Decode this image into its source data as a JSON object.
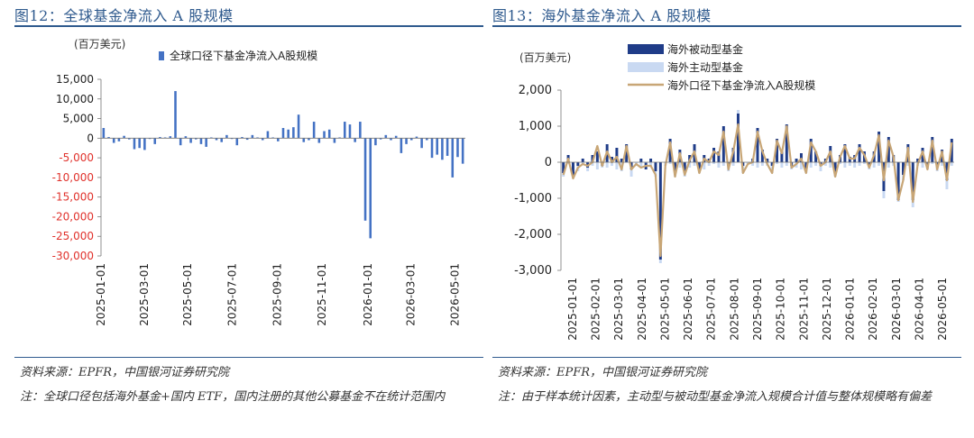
{
  "left": {
    "title": "图12：全球基金净流入 A 股规模",
    "source": "资料来源：EPFR，中国银河证券研究院",
    "note": "注：全球口径包括海外基金+国内 ETF，国内注册的其他公募基金不在统计范围内"
  },
  "right": {
    "title": "图13：海外基金净流入 A 股规模",
    "source": "资料来源：EPFR，中国银河证券研究院",
    "note": "注：由于样本统计因素，主动型与被动型基金净流入规模合计值与整体规模略有偏差"
  },
  "colors": {
    "bar_blue": "#4472c4",
    "passive": "#1f3c88",
    "active": "#c9d9f2",
    "total_line": "#c8a676",
    "neg_tick": "#e0322c",
    "title_blue": "#2f5a8e"
  },
  "chart_data": [
    {
      "type": "bar",
      "unit_label": "(百万美元)",
      "series": [
        {
          "name": "全球口径下基金净流入A股规模",
          "values": [
            2600,
            300,
            -1200,
            -800,
            600,
            -300,
            -2800,
            -2500,
            -3000,
            -200,
            -1500,
            300,
            200,
            500,
            12000,
            -1800,
            500,
            -1200,
            -300,
            -1500,
            -2200,
            200,
            -500,
            -1000,
            800,
            -200,
            -1800,
            300,
            -400,
            800,
            200,
            -500,
            1800,
            200,
            -800,
            2600,
            2200,
            2800,
            6000,
            -1000,
            -500,
            4200,
            -1200,
            1800,
            2200,
            -1200,
            200,
            4200,
            3500,
            -1000,
            4200,
            -21000,
            -25500,
            -1800,
            -300,
            800,
            -500,
            600,
            -3800,
            -1500,
            -500,
            400,
            -2500,
            -500,
            -5000,
            -4200,
            -5500,
            -4500,
            -10000,
            -4800,
            -6500
          ]
        }
      ],
      "x_tick_labels": [
        "2025-01-01",
        "2025-03-01",
        "2025-05-01",
        "2025-07-01",
        "2025-09-01",
        "2025-11-01",
        "2026-01-01",
        "2026-03-01",
        "2026-05-01"
      ],
      "x_tick_weeks": [
        0,
        8.4,
        16.9,
        25.6,
        34.4,
        43.1,
        52,
        60.4,
        69
      ],
      "y_ticks": [
        15000,
        10000,
        5000,
        0,
        -5000,
        -10000,
        -15000,
        -20000,
        -25000,
        -30000
      ],
      "y_tick_labels": [
        "15,000",
        "10,000",
        "5,000",
        "0",
        "-5,000",
        "-10,000",
        "-15,000",
        "-20,000",
        "-25,000",
        "-30,000"
      ],
      "ylim": [
        -30000,
        15000
      ],
      "legend": "top"
    },
    {
      "type": "bar",
      "unit_label": "(百万美元)",
      "series": [
        {
          "name": "海外被动型基金",
          "values": [
            -300,
            200,
            -400,
            -100,
            100,
            -150,
            200,
            300,
            -100,
            500,
            150,
            400,
            100,
            500,
            -200,
            0,
            100,
            -200,
            100,
            -250,
            -2700,
            0,
            650,
            -350,
            350,
            -300,
            200,
            500,
            -200,
            200,
            100,
            400,
            300,
            1000,
            -100,
            400,
            1350,
            -100,
            0,
            100,
            950,
            350,
            100,
            -100,
            650,
            300,
            1050,
            -100,
            100,
            250,
            -200,
            650,
            300,
            -100,
            100,
            450,
            -300,
            200,
            500,
            150,
            200,
            500,
            300,
            -100,
            300,
            850,
            -800,
            700,
            200,
            -1050,
            -350,
            500,
            -1050,
            100,
            400,
            -100,
            700,
            -100,
            350,
            -500,
            650
          ],
          "color_key": "passive"
        },
        {
          "name": "海外主动型基金",
          "values": [
            -100,
            -50,
            -50,
            -150,
            -50,
            -100,
            -100,
            -200,
            -50,
            -150,
            -100,
            -200,
            -250,
            0,
            -200,
            -100,
            -150,
            0,
            -100,
            -150,
            -100,
            -100,
            -50,
            -50,
            -150,
            -100,
            -150,
            -100,
            -100,
            -200,
            -100,
            -50,
            -150,
            -100,
            -150,
            -100,
            100,
            -200,
            -50,
            -100,
            -150,
            -100,
            -100,
            -200,
            -50,
            -150,
            -100,
            -100,
            -150,
            -200,
            -100,
            -150,
            -100,
            -150,
            -100,
            -150,
            -100,
            -50,
            -150,
            -100,
            -150,
            -100,
            -50,
            -100,
            -150,
            -100,
            -200,
            -150,
            -100,
            -50,
            -150,
            -100,
            -200,
            -100,
            -150,
            -100,
            -50,
            -150,
            -100,
            -250,
            -100
          ],
          "color_key": "active"
        },
        {
          "name": "海外口径下基金净流入A股规模",
          "type": "line",
          "values": [
            -350,
            100,
            -450,
            -150,
            -50,
            -100,
            0,
            450,
            -100,
            300,
            0,
            150,
            -200,
            450,
            -200,
            -50,
            -150,
            -100,
            -100,
            -350,
            -2600,
            -100,
            550,
            -400,
            250,
            -350,
            50,
            300,
            -300,
            100,
            0,
            300,
            200,
            850,
            -200,
            300,
            1050,
            -300,
            -50,
            0,
            850,
            300,
            -50,
            -300,
            600,
            250,
            1000,
            -150,
            -50,
            100,
            -300,
            550,
            300,
            -100,
            0,
            300,
            -400,
            150,
            450,
            100,
            100,
            400,
            200,
            -150,
            200,
            750,
            -500,
            600,
            150,
            -1050,
            -500,
            400,
            -1100,
            -50,
            300,
            -200,
            600,
            -200,
            300,
            -500,
            550
          ]
        }
      ],
      "x_tick_labels": [
        "2025-01-01",
        "2025-02-01",
        "2025-03-01",
        "2025-04-01",
        "2025-05-01",
        "2025-06-01",
        "2025-07-01",
        "2025-08-01",
        "2025-09-01",
        "2025-10-01",
        "2025-11-01",
        "2025-12-01",
        "2026-01-01",
        "2026-02-01",
        "2026-03-01",
        "2026-04-01",
        "2026-05-01"
      ],
      "y_ticks": [
        2000,
        1000,
        0,
        -1000,
        -2000,
        -3000
      ],
      "y_tick_labels": [
        "2,000",
        "1,000",
        "0",
        "-1,000",
        "-2,000",
        "-3,000"
      ],
      "ylim": [
        -3000,
        2000
      ],
      "legend": "top"
    }
  ]
}
